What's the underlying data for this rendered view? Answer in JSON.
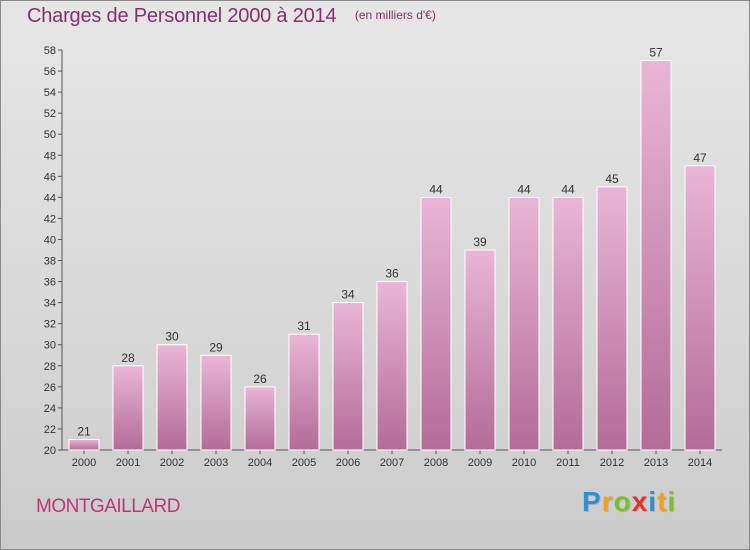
{
  "title": "Charges de Personnel 2000 à 2014",
  "subtitle": "(en milliers d'€)",
  "location": "MONTGAILLARD",
  "logo": {
    "letters": [
      "P",
      "r",
      "o",
      "x",
      "i",
      "t",
      "i"
    ],
    "colors": [
      "#2e8fd8",
      "#f0a020",
      "#7cbf2a",
      "#e03030",
      "#2e8fd8",
      "#f0a020",
      "#7cbf2a"
    ]
  },
  "colors": {
    "bar_light": "#eab5d6",
    "bar_dark": "#b36c98",
    "title": "#8c2e6e",
    "location": "#c0357a"
  },
  "chart_data": {
    "type": "bar",
    "categories": [
      "2000",
      "2001",
      "2002",
      "2003",
      "2004",
      "2005",
      "2006",
      "2007",
      "2008",
      "2009",
      "2010",
      "2011",
      "2012",
      "2013",
      "2014"
    ],
    "values": [
      21,
      28,
      30,
      29,
      26,
      31,
      34,
      36,
      44,
      39,
      44,
      44,
      45,
      57,
      47
    ],
    "title": "Charges de Personnel 2000 à 2014",
    "subtitle": "(en milliers d'€)",
    "ylim": [
      20,
      58
    ],
    "ytick_step": 2,
    "grid": false,
    "legend": "none"
  }
}
